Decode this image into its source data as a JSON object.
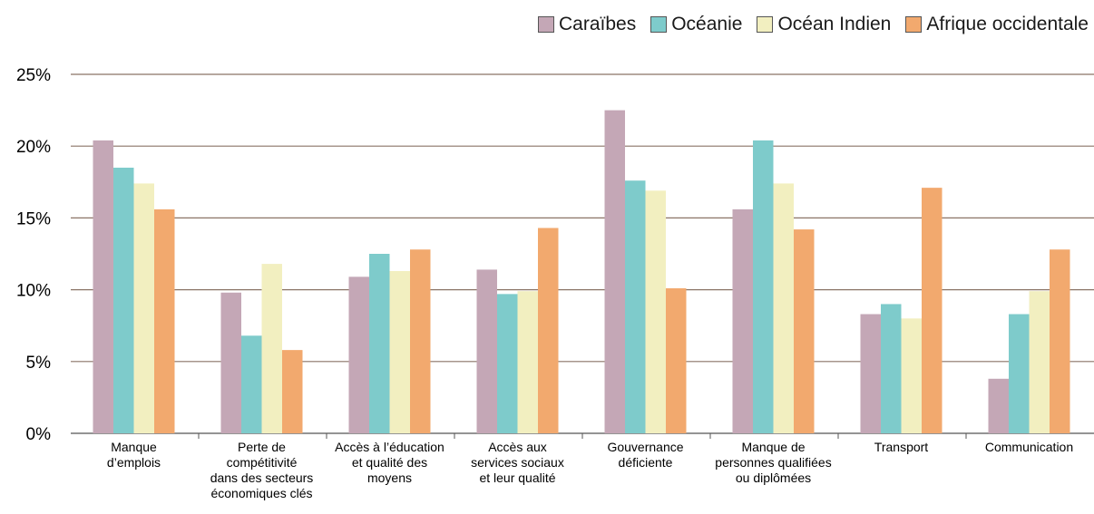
{
  "chart_data": {
    "type": "bar",
    "categories": [
      [
        "Manque",
        "d’emplois"
      ],
      [
        "Perte de",
        "compétitivité",
        "dans des secteurs",
        "économiques clés"
      ],
      [
        "Accès à l’éducation",
        "et qualité des",
        "moyens"
      ],
      [
        "Accès aux",
        "services sociaux",
        "et leur qualité"
      ],
      [
        "Gouvernance",
        "déficiente"
      ],
      [
        "Manque de",
        "personnes qualifiées",
        "ou diplômées"
      ],
      [
        "Transport"
      ],
      [
        "Communication"
      ]
    ],
    "series": [
      {
        "name": "Caraïbes",
        "color": "#c4a7b6",
        "values": [
          20.4,
          9.8,
          10.9,
          11.4,
          22.5,
          15.6,
          8.3,
          3.8
        ]
      },
      {
        "name": "Océanie",
        "color": "#7ecbcb",
        "values": [
          18.5,
          6.8,
          12.5,
          9.7,
          17.6,
          20.4,
          9.0,
          8.3
        ]
      },
      {
        "name": "Océan Indien",
        "color": "#f2efc0",
        "values": [
          17.4,
          11.8,
          11.3,
          9.9,
          16.9,
          17.4,
          8.0,
          9.9
        ]
      },
      {
        "name": "Afrique occidentale",
        "color": "#f2a96e",
        "values": [
          15.6,
          5.8,
          12.8,
          14.3,
          10.1,
          14.2,
          17.1,
          12.8
        ]
      }
    ],
    "yticks": [
      "0%",
      "5%",
      "10%",
      "15%",
      "20%",
      "25%"
    ],
    "ylim": [
      0,
      25
    ],
    "grid": true,
    "legend_position": "top-right"
  }
}
